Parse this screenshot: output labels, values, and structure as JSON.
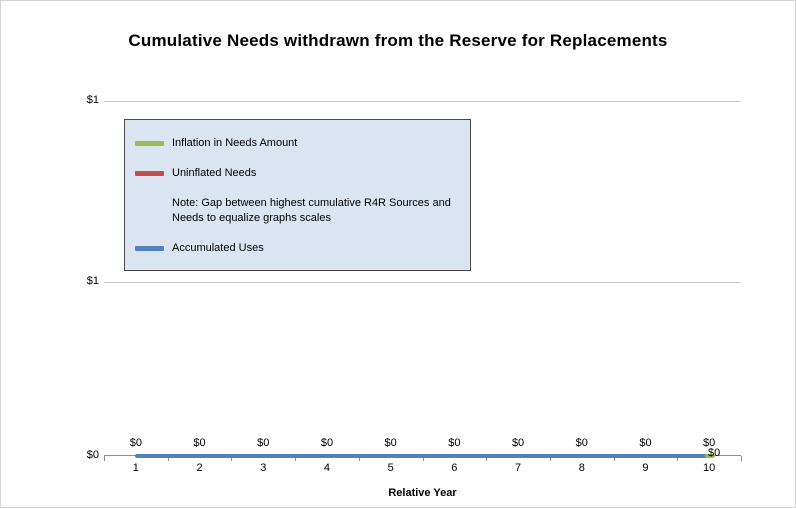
{
  "chart_data": {
    "type": "line",
    "title": "Cumulative Needs withdrawn from the Reserve for Replacements",
    "xlabel": "Relative Year",
    "ylabel": "",
    "categories": [
      "1",
      "2",
      "3",
      "4",
      "5",
      "6",
      "7",
      "8",
      "9",
      "10"
    ],
    "y_ticks": [
      "$1",
      "$1",
      "$0"
    ],
    "ylim": [
      0,
      2
    ],
    "grid": true,
    "legend_position": "inside-top-left",
    "series": [
      {
        "name": "Inflation in Needs Amount",
        "color": "#9bbb59",
        "values": [
          0,
          0,
          0,
          0,
          0,
          0,
          0,
          0,
          0,
          0
        ]
      },
      {
        "name": "Uninflated Needs",
        "color": "#c0504d",
        "values": [
          0,
          0,
          0,
          0,
          0,
          0,
          0,
          0,
          0,
          0
        ]
      },
      {
        "name": "Note: Gap between highest cumulative R4R Sources and Needs to equalize graphs scales",
        "color": "none",
        "values": [
          0,
          0,
          0,
          0,
          0,
          0,
          0,
          0,
          0,
          0
        ]
      },
      {
        "name": "Accumulated Uses",
        "color": "#4f81bd",
        "values": [
          0,
          0,
          0,
          0,
          0,
          0,
          0,
          0,
          0,
          0
        ]
      }
    ],
    "data_labels": [
      "$0",
      "$0",
      "$0",
      "$0",
      "$0",
      "$0",
      "$0",
      "$0",
      "$0",
      "$0"
    ],
    "right_label": "$0",
    "colors": {
      "accumulated_uses": "#4f81bd",
      "uninflated_needs": "#c0504d",
      "inflation_in_needs": "#9bbb59",
      "legend_background": "#dbe5f1",
      "gridline": "#c8c8c8",
      "axis": "#8c8c8c"
    }
  }
}
